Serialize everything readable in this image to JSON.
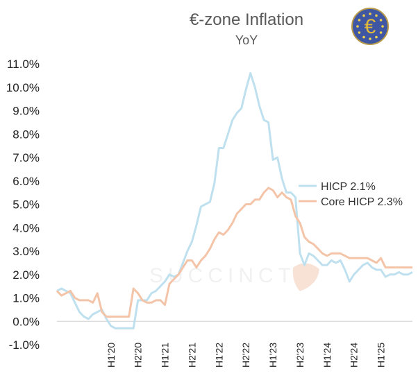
{
  "chart_data": {
    "type": "line",
    "title": "€-zone Inflation",
    "subtitle": "YoY",
    "watermark": "SUCCINCT",
    "x": [
      "2019-01",
      "2019-02",
      "2019-03",
      "2019-04",
      "2019-05",
      "2019-06",
      "2019-07",
      "2019-08",
      "2019-09",
      "2019-10",
      "2019-11",
      "2019-12",
      "2020-01",
      "2020-02",
      "2020-03",
      "2020-04",
      "2020-05",
      "2020-06",
      "2020-07",
      "2020-08",
      "2020-09",
      "2020-10",
      "2020-11",
      "2020-12",
      "2021-01",
      "2021-02",
      "2021-03",
      "2021-04",
      "2021-05",
      "2021-06",
      "2021-07",
      "2021-08",
      "2021-09",
      "2021-10",
      "2021-11",
      "2021-12",
      "2022-01",
      "2022-02",
      "2022-03",
      "2022-04",
      "2022-05",
      "2022-06",
      "2022-07",
      "2022-08",
      "2022-09",
      "2022-10",
      "2022-11",
      "2022-12",
      "2023-01",
      "2023-02",
      "2023-03",
      "2023-04",
      "2023-05",
      "2023-06",
      "2023-07",
      "2023-08",
      "2023-09",
      "2023-10",
      "2023-11",
      "2023-12",
      "2024-01",
      "2024-02",
      "2024-03",
      "2024-04",
      "2024-05",
      "2024-06",
      "2024-07",
      "2024-08",
      "2024-09",
      "2024-10",
      "2024-11",
      "2024-12",
      "2025-01",
      "2025-02",
      "2025-03",
      "2025-04",
      "2025-05",
      "2025-06",
      "2025-07",
      "2025-08"
    ],
    "x_tick_labels": [
      "H1'20",
      "H2'20",
      "H1'21",
      "H2'21",
      "H1'22",
      "H2'22",
      "H1'23",
      "H2'23",
      "H1'24",
      "H2'24",
      "H1'25"
    ],
    "x_tick_positions": [
      "2020-01",
      "2020-07",
      "2021-01",
      "2021-07",
      "2022-01",
      "2022-07",
      "2023-01",
      "2023-07",
      "2024-01",
      "2024-07",
      "2025-01"
    ],
    "y_ticks": [
      "-1.0%",
      "0.0%",
      "1.0%",
      "2.0%",
      "3.0%",
      "4.0%",
      "5.0%",
      "6.0%",
      "7.0%",
      "8.0%",
      "9.0%",
      "10.0%",
      "11.0%"
    ],
    "ylim": [
      -1.0,
      11.0
    ],
    "grid": false,
    "legend_position": "right",
    "series": [
      {
        "name": "HICP 2.1%",
        "color": "#bfe0ee",
        "values": [
          1.3,
          1.4,
          1.3,
          1.2,
          0.8,
          0.4,
          0.2,
          0.1,
          0.3,
          0.4,
          0.5,
          0.1,
          -0.2,
          -0.3,
          -0.3,
          -0.3,
          -0.3,
          -0.3,
          0.9,
          0.9,
          0.9,
          1.2,
          1.3,
          1.5,
          1.7,
          2.0,
          1.9,
          2.0,
          2.5,
          3.0,
          3.4,
          4.1,
          4.9,
          5.0,
          5.1,
          5.9,
          7.4,
          7.4,
          8.0,
          8.6,
          8.9,
          9.1,
          9.9,
          10.6,
          10.0,
          9.2,
          8.6,
          8.5,
          6.9,
          7.0,
          6.1,
          5.5,
          5.5,
          5.3,
          2.9,
          2.4,
          2.9,
          2.8,
          2.6,
          2.4,
          2.4,
          2.6,
          2.5,
          2.6,
          2.2,
          1.7,
          2.0,
          2.2,
          2.4,
          2.5,
          2.3,
          2.2,
          2.2,
          1.9,
          2.0,
          2.0,
          2.1,
          2.0,
          2.0,
          2.1
        ],
        "_note_only_first_series": ""
      },
      {
        "name": "Core HICP 2.3%",
        "color": "#f4c4a8",
        "values": [
          1.3,
          1.1,
          1.2,
          1.3,
          1.0,
          0.9,
          0.9,
          0.9,
          0.8,
          1.2,
          0.4,
          0.2,
          0.2,
          0.2,
          0.2,
          0.2,
          0.2,
          1.4,
          1.2,
          0.9,
          0.8,
          0.8,
          0.9,
          0.9,
          0.7,
          1.6,
          1.8,
          2.0,
          2.3,
          2.6,
          2.6,
          2.3,
          2.6,
          2.8,
          3.1,
          3.5,
          3.8,
          3.7,
          3.9,
          4.2,
          4.6,
          4.8,
          5.0,
          5.0,
          5.2,
          5.2,
          5.5,
          5.7,
          5.6,
          5.3,
          5.5,
          5.3,
          5.2,
          4.5,
          4.2,
          3.6,
          3.4,
          3.3,
          3.1,
          2.9,
          2.8,
          2.9,
          2.9,
          2.9,
          2.8,
          2.7,
          2.7,
          2.7,
          2.7,
          2.7,
          2.6,
          2.5,
          2.7,
          2.3,
          2.3,
          2.3,
          2.3,
          2.3,
          2.3,
          2.3
        ]
      }
    ]
  }
}
